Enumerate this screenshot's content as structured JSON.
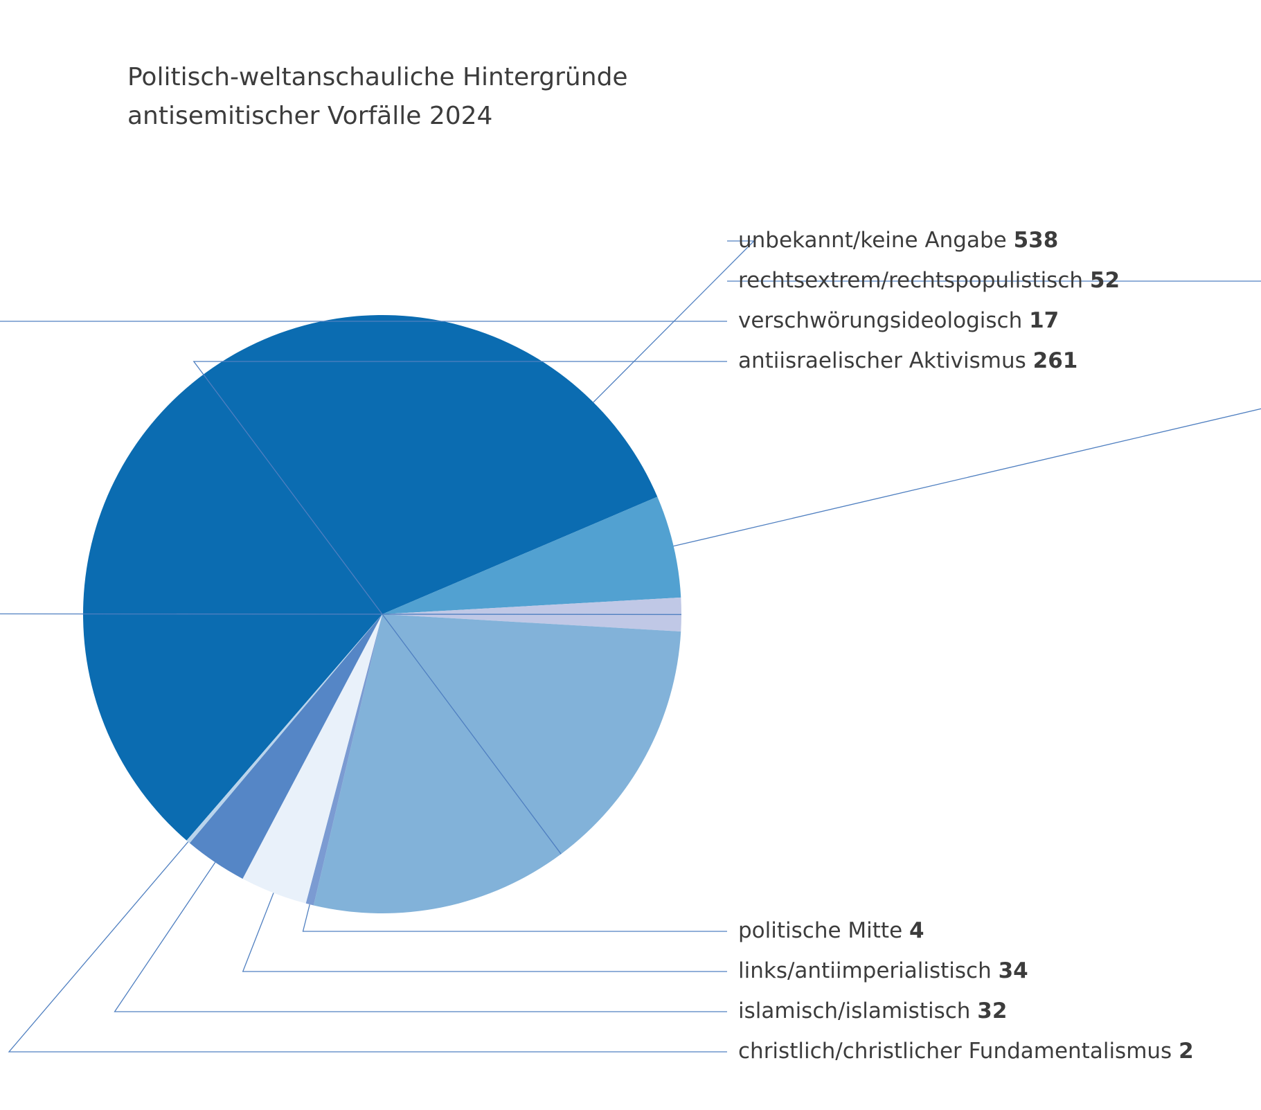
{
  "chart_data": {
    "type": "pie",
    "title": "Politisch-weltanschauliche Hintergründe",
    "subtitle": "antisemitischer Vorfälle 2024",
    "categories": [
      "unbekannt/keine Angabe",
      "rechtsextrem/rechtspopulistisch",
      "verschwörungsideologisch",
      "antiisraelischer Aktivismus",
      "politische Mitte",
      "links/antiimperialistisch",
      "islamisch/islamistisch",
      "christlich/christlicher Fundamentalismus"
    ],
    "values": [
      538,
      52,
      17,
      261,
      4,
      34,
      32,
      2
    ],
    "colors": [
      "#0b6cb1",
      "#52a1d1",
      "#c0c8e6",
      "#82b2d9",
      "#7b9bd2",
      "#e9f1fa",
      "#5586c6",
      "#b9d4ec"
    ]
  }
}
